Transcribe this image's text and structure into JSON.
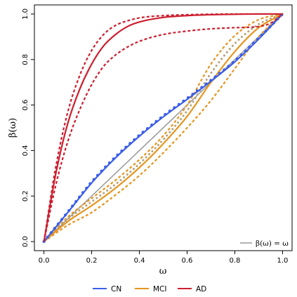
{
  "chart_data": {
    "type": "line",
    "xlabel": "ω",
    "ylabel": "β(ω)",
    "xlim": [
      -0.04,
      1.04
    ],
    "ylim": [
      -0.04,
      1.04
    ],
    "x_ticks": [
      "0.0",
      "0.2",
      "0.4",
      "0.6",
      "0.8",
      "1.0"
    ],
    "y_ticks": [
      "0.0",
      "0.2",
      "0.4",
      "0.6",
      "0.8",
      "1.0"
    ],
    "grid": false,
    "colors": {
      "CN": "#3b5ee8",
      "MCI": "#e6951f",
      "AD": "#cc1f2f",
      "identity": "#999999"
    },
    "legend": {
      "placement": "bottom-outside",
      "entries": [
        "CN",
        "MCI",
        "AD"
      ]
    },
    "inset_legend": {
      "placement": "bottom-right",
      "text": "β(ω) = ω"
    },
    "series": [
      {
        "name": "identity",
        "style": "solid",
        "color": "#999999",
        "x": [
          0,
          1
        ],
        "y": [
          0,
          1
        ]
      },
      {
        "name": "CN",
        "style": "solid",
        "color": "#3b5ee8",
        "x": [
          0,
          0.1,
          0.2,
          0.3,
          0.4,
          0.5,
          0.6,
          0.7,
          0.8,
          0.9,
          1.0
        ],
        "y": [
          0,
          0.128,
          0.258,
          0.368,
          0.463,
          0.548,
          0.625,
          0.705,
          0.79,
          0.89,
          1.0
        ]
      },
      {
        "name": "CN band",
        "style": "dotted",
        "color": "#3b5ee8",
        "x": [
          0,
          0.1,
          0.2,
          0.3,
          0.4,
          0.5,
          0.6,
          0.7,
          0.8,
          0.9,
          1.0
        ],
        "y": [
          0,
          0.13,
          0.262,
          0.372,
          0.467,
          0.552,
          0.629,
          0.709,
          0.794,
          0.894,
          1.0
        ]
      },
      {
        "name": "MCI",
        "style": "solid",
        "color": "#e6951f",
        "x": [
          0,
          0.1,
          0.2,
          0.3,
          0.4,
          0.5,
          0.6,
          0.7,
          0.8,
          0.9,
          1.0
        ],
        "y": [
          0,
          0.088,
          0.158,
          0.235,
          0.325,
          0.43,
          0.55,
          0.7,
          0.835,
          0.94,
          1.0
        ]
      },
      {
        "name": "MCI upper",
        "style": "dashed",
        "color": "#e6951f",
        "x": [
          0,
          0.1,
          0.2,
          0.3,
          0.4,
          0.5,
          0.6,
          0.7,
          0.8,
          0.9,
          1.0
        ],
        "y": [
          0,
          0.108,
          0.19,
          0.27,
          0.36,
          0.465,
          0.6,
          0.78,
          0.905,
          0.975,
          1.0
        ]
      },
      {
        "name": "MCI lower",
        "style": "dashed",
        "color": "#e6951f",
        "x": [
          0,
          0.1,
          0.2,
          0.3,
          0.4,
          0.5,
          0.6,
          0.7,
          0.8,
          0.9,
          1.0
        ],
        "y": [
          0,
          0.072,
          0.128,
          0.205,
          0.29,
          0.39,
          0.5,
          0.62,
          0.76,
          0.9,
          1.0
        ]
      },
      {
        "name": "MCI mid",
        "style": "dotted",
        "color": "#b8a27a",
        "x": [
          0,
          0.1,
          0.2,
          0.3,
          0.4,
          0.5,
          0.6,
          0.7,
          0.8,
          0.9,
          1.0
        ],
        "y": [
          0,
          0.098,
          0.175,
          0.252,
          0.342,
          0.448,
          0.575,
          0.74,
          0.87,
          0.955,
          1.0
        ]
      },
      {
        "name": "AD",
        "style": "solid",
        "color": "#cc1f2f",
        "x": [
          0,
          0.05,
          0.1,
          0.15,
          0.2,
          0.25,
          0.3,
          0.35,
          0.4,
          0.5,
          0.6,
          0.7,
          0.8,
          0.9,
          1.0
        ],
        "y": [
          0,
          0.3,
          0.52,
          0.67,
          0.78,
          0.86,
          0.91,
          0.945,
          0.965,
          0.985,
          0.993,
          0.997,
          0.999,
          1.0,
          1.0
        ]
      },
      {
        "name": "AD upper",
        "style": "dashed",
        "color": "#cc1f2f",
        "x": [
          0,
          0.05,
          0.1,
          0.15,
          0.2,
          0.25,
          0.3,
          0.35,
          0.4,
          0.5,
          0.6,
          0.7,
          0.8,
          0.9,
          1.0
        ],
        "y": [
          0,
          0.33,
          0.57,
          0.73,
          0.84,
          0.91,
          0.95,
          0.97,
          0.983,
          0.993,
          0.997,
          0.999,
          1.0,
          1.0,
          1.0
        ]
      },
      {
        "name": "AD lower",
        "style": "dashed",
        "color": "#cc1f2f",
        "x": [
          0,
          0.05,
          0.1,
          0.15,
          0.2,
          0.25,
          0.3,
          0.35,
          0.4,
          0.5,
          0.6,
          0.7,
          0.8,
          0.9,
          0.95,
          1.0
        ],
        "y": [
          0,
          0.25,
          0.44,
          0.58,
          0.69,
          0.77,
          0.82,
          0.855,
          0.88,
          0.91,
          0.925,
          0.935,
          0.94,
          0.945,
          0.96,
          1.0
        ]
      }
    ]
  }
}
